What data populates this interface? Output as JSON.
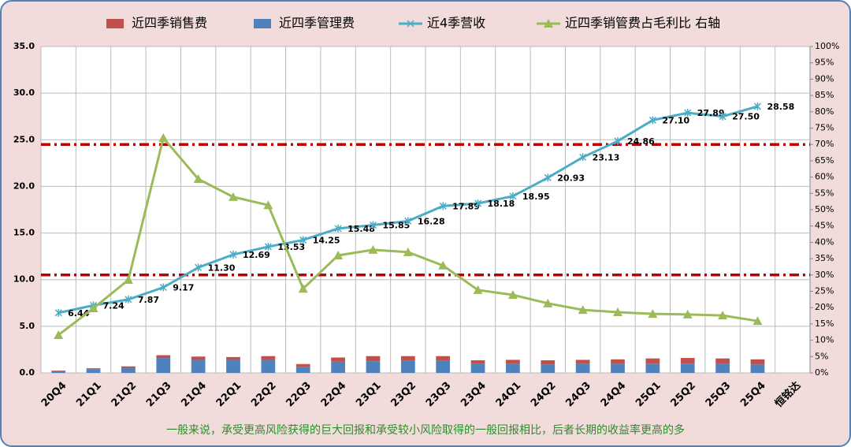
{
  "chart_data": {
    "type": "combo",
    "categories": [
      "20Q4",
      "21Q1",
      "21Q2",
      "21Q3",
      "21Q4",
      "22Q1",
      "22Q2",
      "22Q3",
      "22Q4",
      "23Q1",
      "23Q2",
      "23Q3",
      "23Q4",
      "24Q1",
      "24Q2",
      "24Q3",
      "24Q4",
      "25Q1",
      "25Q2",
      "25Q3",
      "25Q4",
      "恒铭达"
    ],
    "series": [
      {
        "name": "近四季销售费",
        "type": "bar",
        "color": "#c0504d",
        "values": [
          0.05,
          0.1,
          0.15,
          0.3,
          0.35,
          0.3,
          0.4,
          0.3,
          0.45,
          0.55,
          0.5,
          0.5,
          0.4,
          0.45,
          0.45,
          0.45,
          0.5,
          0.55,
          0.6,
          0.6,
          0.55,
          null
        ]
      },
      {
        "name": "近四季管理费",
        "type": "bar",
        "color": "#4f81bd",
        "values": [
          0.2,
          0.4,
          0.55,
          1.6,
          1.4,
          1.4,
          1.4,
          0.65,
          1.2,
          1.25,
          1.3,
          1.3,
          0.95,
          0.95,
          0.9,
          0.95,
          0.95,
          1.0,
          1.0,
          0.95,
          0.9,
          null
        ]
      },
      {
        "name": "近4季营收",
        "type": "line",
        "color": "#4bacc6",
        "values": [
          6.44,
          7.24,
          7.87,
          9.17,
          11.3,
          12.69,
          13.53,
          14.25,
          15.48,
          15.85,
          16.28,
          17.89,
          18.18,
          18.95,
          20.93,
          23.13,
          24.86,
          27.1,
          27.89,
          27.5,
          28.58,
          null
        ],
        "value_labels": [
          "6.44",
          "7.24",
          "7.87",
          "9.17",
          "11.30",
          "12.69",
          "13.53",
          "14.25",
          "15.48",
          "15.85",
          "16.28",
          "17.89",
          "18.18",
          "18.95",
          "20.93",
          "23.13",
          "24.86",
          "27.10",
          "27.89",
          "27.50",
          "28.58",
          null
        ]
      },
      {
        "name": "近四季销管费占毛利比 右轴",
        "type": "line",
        "axis": "y2",
        "color": "#9bbb59",
        "values": [
          11.6,
          19.8,
          28.5,
          72,
          59.4,
          53.9,
          51.4,
          25.8,
          36,
          37.7,
          37,
          32.9,
          25.4,
          23.9,
          21.3,
          19.3,
          18.6,
          18.1,
          17.9,
          17.6,
          15.9,
          null
        ]
      }
    ],
    "reference_lines": {
      "axis": "y2",
      "color": "#c00000",
      "values": [
        70,
        30
      ]
    },
    "ylim": [
      0,
      35
    ],
    "yticks": [
      {
        "value": 0,
        "label": "0.0"
      },
      {
        "value": 5,
        "label": "5.0"
      },
      {
        "value": 10,
        "label": "10.0"
      },
      {
        "value": 15,
        "label": "15.0"
      },
      {
        "value": 20,
        "label": "20.0"
      },
      {
        "value": 25,
        "label": "25.0"
      },
      {
        "value": 30,
        "label": "30.0"
      },
      {
        "value": 35,
        "label": "35.0"
      }
    ],
    "y2lim": [
      0,
      100
    ],
    "y2ticks": [
      {
        "value": 0,
        "label": "0%"
      },
      {
        "value": 5,
        "label": "5%"
      },
      {
        "value": 10,
        "label": "10%"
      },
      {
        "value": 15,
        "label": "15%"
      },
      {
        "value": 20,
        "label": "20%"
      },
      {
        "value": 25,
        "label": "25%"
      },
      {
        "value": 30,
        "label": "30%"
      },
      {
        "value": 35,
        "label": "35%"
      },
      {
        "value": 40,
        "label": "40%"
      },
      {
        "value": 45,
        "label": "45%"
      },
      {
        "value": 50,
        "label": "50%"
      },
      {
        "value": 55,
        "label": "55%"
      },
      {
        "value": 60,
        "label": "60%"
      },
      {
        "value": 65,
        "label": "65%"
      },
      {
        "value": 70,
        "label": "70%"
      },
      {
        "value": 75,
        "label": "75%"
      },
      {
        "value": 80,
        "label": "80%"
      },
      {
        "value": 85,
        "label": "85%"
      },
      {
        "value": 90,
        "label": "90%"
      },
      {
        "value": 95,
        "label": "95%"
      },
      {
        "value": 100,
        "label": "100%"
      }
    ],
    "grid": true,
    "legend": "top",
    "note": "一般来说，承受更高风险获得的巨大回报和承受较小风险取得的一般回报相比，后者长期的收益率更高的多"
  }
}
